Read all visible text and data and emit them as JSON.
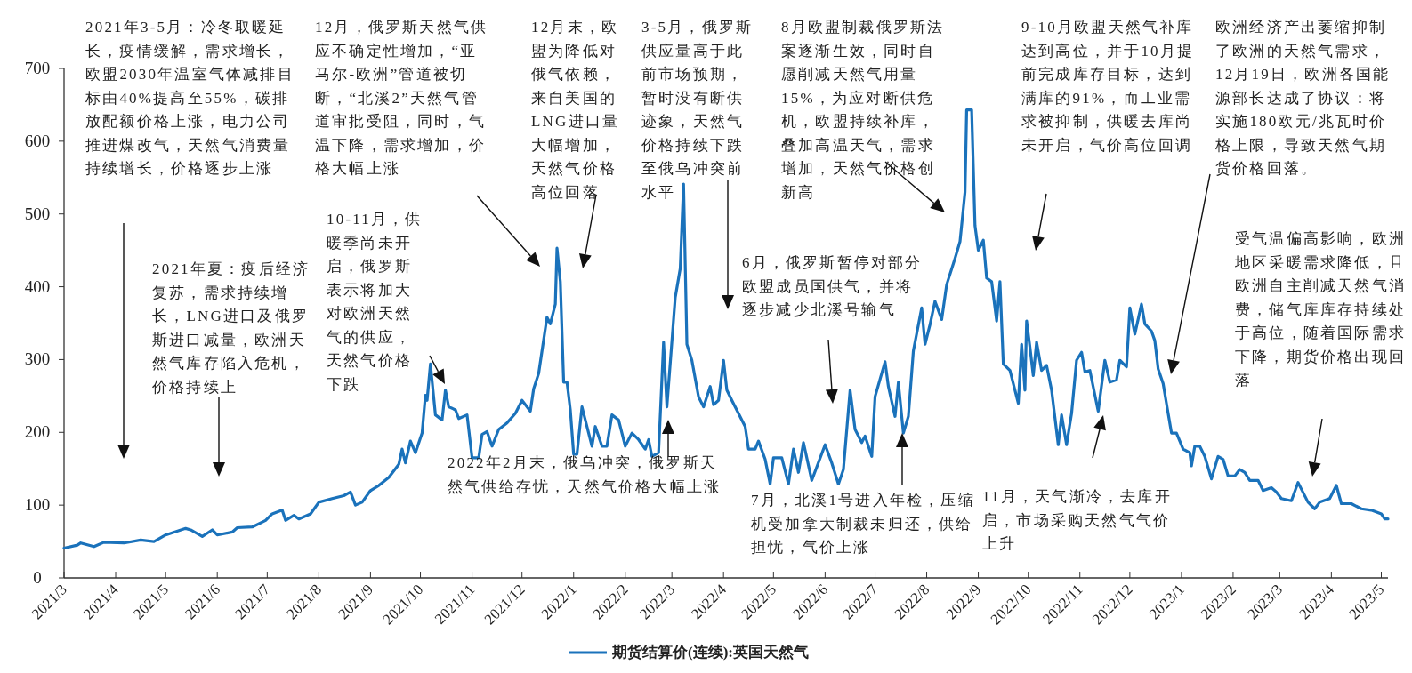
{
  "chart_data": {
    "type": "line",
    "xlim": [
      "2021-03-01",
      "2023-05-05"
    ],
    "xticks": [
      {
        "value": "2021-03",
        "label": "2021/3"
      },
      {
        "value": "2021-04",
        "label": "2021/4"
      },
      {
        "value": "2021-05",
        "label": "2021/5"
      },
      {
        "value": "2021-06",
        "label": "2021/6"
      },
      {
        "value": "2021-07",
        "label": "2021/7"
      },
      {
        "value": "2021-08",
        "label": "2021/8"
      },
      {
        "value": "2021-09",
        "label": "2021/9"
      },
      {
        "value": "2021-10",
        "label": "2021/10"
      },
      {
        "value": "2021-11",
        "label": "2021/11"
      },
      {
        "value": "2021-12",
        "label": "2021/12"
      },
      {
        "value": "2022-01",
        "label": "2022/1"
      },
      {
        "value": "2022-02",
        "label": "2022/2"
      },
      {
        "value": "2022-03",
        "label": "2022/3"
      },
      {
        "value": "2022-04",
        "label": "2022/4"
      },
      {
        "value": "2022-05",
        "label": "2022/5"
      },
      {
        "value": "2022-06",
        "label": "2022/6"
      },
      {
        "value": "2022-07",
        "label": "2022/7"
      },
      {
        "value": "2022-08",
        "label": "2022/8"
      },
      {
        "value": "2022-09",
        "label": "2022/9"
      },
      {
        "value": "2022-10",
        "label": "2022/10"
      },
      {
        "value": "2022-11",
        "label": "2022/11"
      },
      {
        "value": "2022-12",
        "label": "2022/12"
      },
      {
        "value": "2023-01",
        "label": "2023/1"
      },
      {
        "value": "2023-02",
        "label": "2023/2"
      },
      {
        "value": "2023-03",
        "label": "2023/3"
      },
      {
        "value": "2023-04",
        "label": "2023/4"
      },
      {
        "value": "2023-05",
        "label": "2023/5"
      }
    ],
    "ylim": [
      0,
      700
    ],
    "yticks": [
      0,
      100,
      200,
      300,
      400,
      500,
      600,
      700
    ],
    "legend": "bottom",
    "series": [
      {
        "name": "期货结算价(连续):英国天然气",
        "color": "#1a72bb",
        "x": [
          "2021-03-01",
          "2021-03-09",
          "2021-03-11",
          "2021-03-19",
          "2021-03-25",
          "2021-04-06",
          "2021-04-16",
          "2021-04-24",
          "2021-05-01",
          "2021-05-13",
          "2021-05-16",
          "2021-05-23",
          "2021-05-29",
          "2021-06-01",
          "2021-06-10",
          "2021-06-13",
          "2021-06-22",
          "2021-06-30",
          "2021-07-04",
          "2021-07-10",
          "2021-07-12",
          "2021-07-17",
          "2021-07-20",
          "2021-07-27",
          "2021-08-01",
          "2021-08-09",
          "2021-08-16",
          "2021-08-20",
          "2021-08-23",
          "2021-08-27",
          "2021-09-01",
          "2021-09-06",
          "2021-09-12",
          "2021-09-18",
          "2021-09-20",
          "2021-09-22",
          "2021-09-25",
          "2021-09-28",
          "2021-10-02",
          "2021-10-04",
          "2021-10-05",
          "2021-10-07",
          "2021-10-10",
          "2021-10-14",
          "2021-10-16",
          "2021-10-18",
          "2021-10-22",
          "2021-10-24",
          "2021-10-29",
          "2021-11-01",
          "2021-11-05",
          "2021-11-07",
          "2021-11-10",
          "2021-11-13",
          "2021-11-17",
          "2021-11-22",
          "2021-11-27",
          "2021-12-01",
          "2021-12-06",
          "2021-12-08",
          "2021-12-11",
          "2021-12-16",
          "2021-12-18",
          "2021-12-21",
          "2021-12-22",
          "2021-12-24",
          "2021-12-26",
          "2021-12-28",
          "2021-12-30",
          "2022-01-01",
          "2022-01-03",
          "2022-01-06",
          "2022-01-08",
          "2022-01-12",
          "2022-01-14",
          "2022-01-18",
          "2022-01-21",
          "2022-01-24",
          "2022-01-28",
          "2022-02-01",
          "2022-02-05",
          "2022-02-09",
          "2022-02-13",
          "2022-02-15",
          "2022-02-17",
          "2022-02-21",
          "2022-02-24",
          "2022-02-26",
          "2022-03-03",
          "2022-03-06",
          "2022-03-08",
          "2022-03-10",
          "2022-03-13",
          "2022-03-17",
          "2022-03-20",
          "2022-03-24",
          "2022-03-26",
          "2022-03-29",
          "2022-04-01",
          "2022-04-03",
          "2022-04-06",
          "2022-04-10",
          "2022-04-14",
          "2022-04-16",
          "2022-04-20",
          "2022-04-22",
          "2022-04-26",
          "2022-04-29",
          "2022-05-01",
          "2022-05-06",
          "2022-05-10",
          "2022-05-13",
          "2022-05-16",
          "2022-05-19",
          "2022-05-24",
          "2022-06-01",
          "2022-06-05",
          "2022-06-09",
          "2022-06-12",
          "2022-06-16",
          "2022-06-19",
          "2022-06-23",
          "2022-06-25",
          "2022-06-29",
          "2022-07-01",
          "2022-07-07",
          "2022-07-09",
          "2022-07-13",
          "2022-07-15",
          "2022-07-18",
          "2022-07-21",
          "2022-07-24",
          "2022-07-29",
          "2022-07-31",
          "2022-08-03",
          "2022-08-06",
          "2022-08-10",
          "2022-08-13",
          "2022-08-18",
          "2022-08-21",
          "2022-08-24",
          "2022-08-25",
          "2022-08-28",
          "2022-08-30",
          "2022-09-01",
          "2022-09-04",
          "2022-09-06",
          "2022-09-09",
          "2022-09-12",
          "2022-09-14",
          "2022-09-16",
          "2022-09-20",
          "2022-09-25",
          "2022-09-27",
          "2022-09-29",
          "2022-09-30",
          "2022-10-02",
          "2022-10-04",
          "2022-10-06",
          "2022-10-09",
          "2022-10-12",
          "2022-10-15",
          "2022-10-19",
          "2022-10-21",
          "2022-10-24",
          "2022-10-27",
          "2022-10-30",
          "2022-11-02",
          "2022-11-04",
          "2022-11-07",
          "2022-11-12",
          "2022-11-16",
          "2022-11-19",
          "2022-11-23",
          "2022-11-25",
          "2022-11-29",
          "2022-12-01",
          "2022-12-04",
          "2022-12-08",
          "2022-12-10",
          "2022-12-14",
          "2022-12-16",
          "2022-12-18",
          "2022-12-21",
          "2022-12-24",
          "2022-12-26",
          "2022-12-29",
          "2023-01-02",
          "2023-01-06",
          "2023-01-07",
          "2023-01-09",
          "2023-01-12",
          "2023-01-15",
          "2023-01-19",
          "2023-01-23",
          "2023-01-26",
          "2023-01-29",
          "2023-02-02",
          "2023-02-05",
          "2023-02-08",
          "2023-02-11",
          "2023-02-16",
          "2023-02-19",
          "2023-02-24",
          "2023-02-27",
          "2023-03-02",
          "2023-03-08",
          "2023-03-12",
          "2023-03-14",
          "2023-03-18",
          "2023-03-22",
          "2023-03-25",
          "2023-03-31",
          "2023-04-04",
          "2023-04-07",
          "2023-04-13",
          "2023-04-19",
          "2023-04-25",
          "2023-05-01",
          "2023-05-03",
          "2023-05-05"
        ],
        "values": [
          41,
          45,
          48,
          43,
          49,
          48,
          52,
          50,
          59,
          68,
          66,
          57,
          66,
          59,
          63,
          69,
          70,
          79,
          88,
          93,
          79,
          86,
          81,
          88,
          104,
          109,
          113,
          118,
          100,
          104,
          120,
          127,
          138,
          156,
          177,
          158,
          188,
          172,
          199,
          251,
          244,
          294,
          224,
          217,
          258,
          235,
          231,
          219,
          224,
          165,
          165,
          197,
          201,
          181,
          204,
          213,
          226,
          244,
          229,
          260,
          281,
          358,
          349,
          376,
          453,
          407,
          269,
          269,
          231,
          170,
          170,
          235,
          217,
          181,
          208,
          181,
          181,
          224,
          217,
          181,
          199,
          190,
          177,
          190,
          167,
          172,
          324,
          235,
          385,
          425,
          541,
          321,
          299,
          249,
          235,
          263,
          238,
          244,
          299,
          258,
          244,
          226,
          208,
          177,
          177,
          188,
          163,
          129,
          165,
          165,
          129,
          177,
          145,
          186,
          134,
          183,
          158,
          129,
          149,
          258,
          204,
          186,
          195,
          167,
          249,
          297,
          263,
          222,
          269,
          199,
          222,
          312,
          371,
          321,
          348,
          380,
          355,
          403,
          439,
          462,
          530,
          643,
          643,
          484,
          450,
          464,
          412,
          407,
          353,
          407,
          294,
          285,
          240,
          321,
          258,
          353,
          317,
          278,
          324,
          285,
          292,
          258,
          183,
          224,
          183,
          226,
          299,
          310,
          283,
          285,
          229,
          299,
          269,
          272,
          299,
          290,
          371,
          335,
          376,
          349,
          339,
          326,
          287,
          267,
          226,
          199,
          199,
          177,
          172,
          154,
          181,
          181,
          167,
          136,
          167,
          163,
          140,
          140,
          149,
          145,
          134,
          134,
          120,
          124,
          118,
          109,
          106,
          131,
          122,
          104,
          95,
          104,
          109,
          127,
          102,
          102,
          95,
          93,
          88,
          81,
          81
        ]
      }
    ],
    "annotations": [
      "2021年3-5月：冷冬取暖延长，疫情缓解，需求增长，欧盟2030年温室气体减排目标由40%提高至55%，碳排放配额价格上涨，电力公司推进煤改气，天然气消费量持续增长，价格逐步上涨",
      "2021年夏：疫后经济复苏，需求持续增长，LNG进口及俄罗斯进口减量，欧洲天然气库存陷入危机，价格持续上",
      "12月，俄罗斯天然气供应不确定性增加，“亚马尔-欧洲”管道被切断，“北溪2”天然气管道审批受阻，同时，气温下降，需求增加，价格大幅上涨",
      "10-11月，供暖季尚未开启，俄罗斯表示将加大对欧洲天然气的供应，天然气价格下跌",
      "12月末，欧盟为降低对俄气依赖，来自美国的LNG进口量大幅增加，天然气价格高位回落",
      "3-5月，俄罗斯供应量高于此前市场预期，暂时没有断供迹象，天然气价格持续下跌至俄乌冲突前水平",
      "2022年2月末，俄乌冲突，俄罗斯天然气供给存忧，天然气价格大幅上涨",
      "6月，俄罗斯暂停对部分欧盟成员国供气，并将逐步减少北溪号输气",
      "7月，北溪1号进入年检，压缩机受加拿大制裁未归还，供给担忧，气价上涨",
      "8月欧盟制裁俄罗斯法案逐渐生效，同时自愿削减天然气用量15%，为应对断供危机，欧盟持续补库，叠加高温天气，需求增加，天然气价格创新高",
      "9-10月欧盟天然气补库达到高位，并于10月提前完成库存目标，达到满库的91%，而工业需求被抑制，供暖去库尚未开启，气价高位回调",
      "11月，天气渐冷，去库开启，市场采购天然气气价上升",
      "欧洲经济产出萎缩抑制了欧洲的天然气需求，12月19日，欧洲各国能源部长达成了协议：将实施180欧元/兆瓦时价格上限，导致天然气期货价格回落。",
      "受气温偏高影响，欧洲地区采暖需求降低，且欧洲自主削减天然气消费，储气库库存持续处于高位，随着国际需求下降，期货价格出现回落"
    ]
  }
}
